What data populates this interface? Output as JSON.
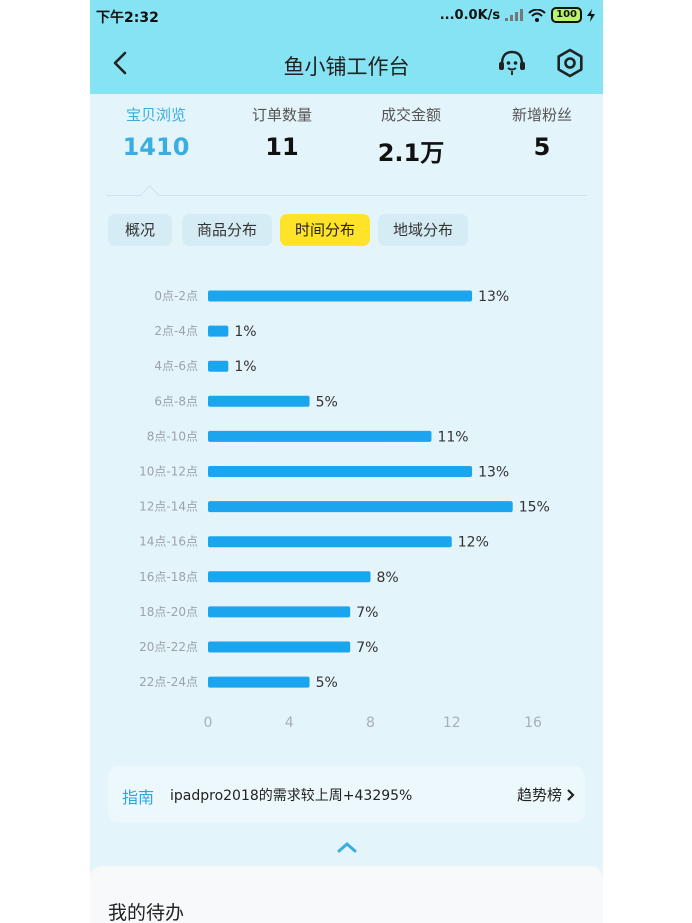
{
  "status_bar": {
    "time": "下午2:32",
    "network_speed": "...0.0K/s",
    "battery": "100"
  },
  "header": {
    "title": "鱼小铺工作台",
    "icons": [
      "back-icon",
      "customer-service-icon",
      "settings-icon"
    ]
  },
  "stats": [
    {
      "label": "宝贝浏览",
      "value": "1410",
      "active": true
    },
    {
      "label": "订单数量",
      "value": "11",
      "active": false
    },
    {
      "label": "成交金额",
      "value": "2.1万",
      "active": false
    },
    {
      "label": "新增粉丝",
      "value": "5",
      "active": false
    }
  ],
  "tabs": [
    {
      "label": "概况",
      "active": false
    },
    {
      "label": "商品分布",
      "active": false
    },
    {
      "label": "时间分布",
      "active": true
    },
    {
      "label": "地域分布",
      "active": false
    }
  ],
  "chart_data": {
    "type": "bar",
    "orientation": "horizontal",
    "categories": [
      "0点-2点",
      "2点-4点",
      "4点-6点",
      "6点-8点",
      "8点-10点",
      "10点-12点",
      "12点-14点",
      "14点-16点",
      "16点-18点",
      "18点-20点",
      "20点-22点",
      "22点-24点"
    ],
    "values": [
      13,
      1,
      1,
      5,
      11,
      13,
      15,
      12,
      8,
      7,
      7,
      5
    ],
    "value_labels": [
      "13%",
      "1%",
      "1%",
      "5%",
      "11%",
      "13%",
      "15%",
      "12%",
      "8%",
      "7%",
      "7%",
      "5%"
    ],
    "xticks": [
      "0",
      "4",
      "8",
      "12",
      "16"
    ],
    "xlim": [
      0,
      16
    ],
    "bar_color": "#1aa5ee",
    "grid": false
  },
  "guide": {
    "tag": "指南",
    "text": "ipadpro2018的需求较上周+43295%",
    "link": "趋势榜"
  },
  "todo": {
    "title": "我的待办"
  },
  "colors": {
    "header_bg": "#86e3f3",
    "page_bg": "#e4f4fb",
    "accent_blue": "#3aaee0",
    "active_tab": "#ffe329"
  }
}
